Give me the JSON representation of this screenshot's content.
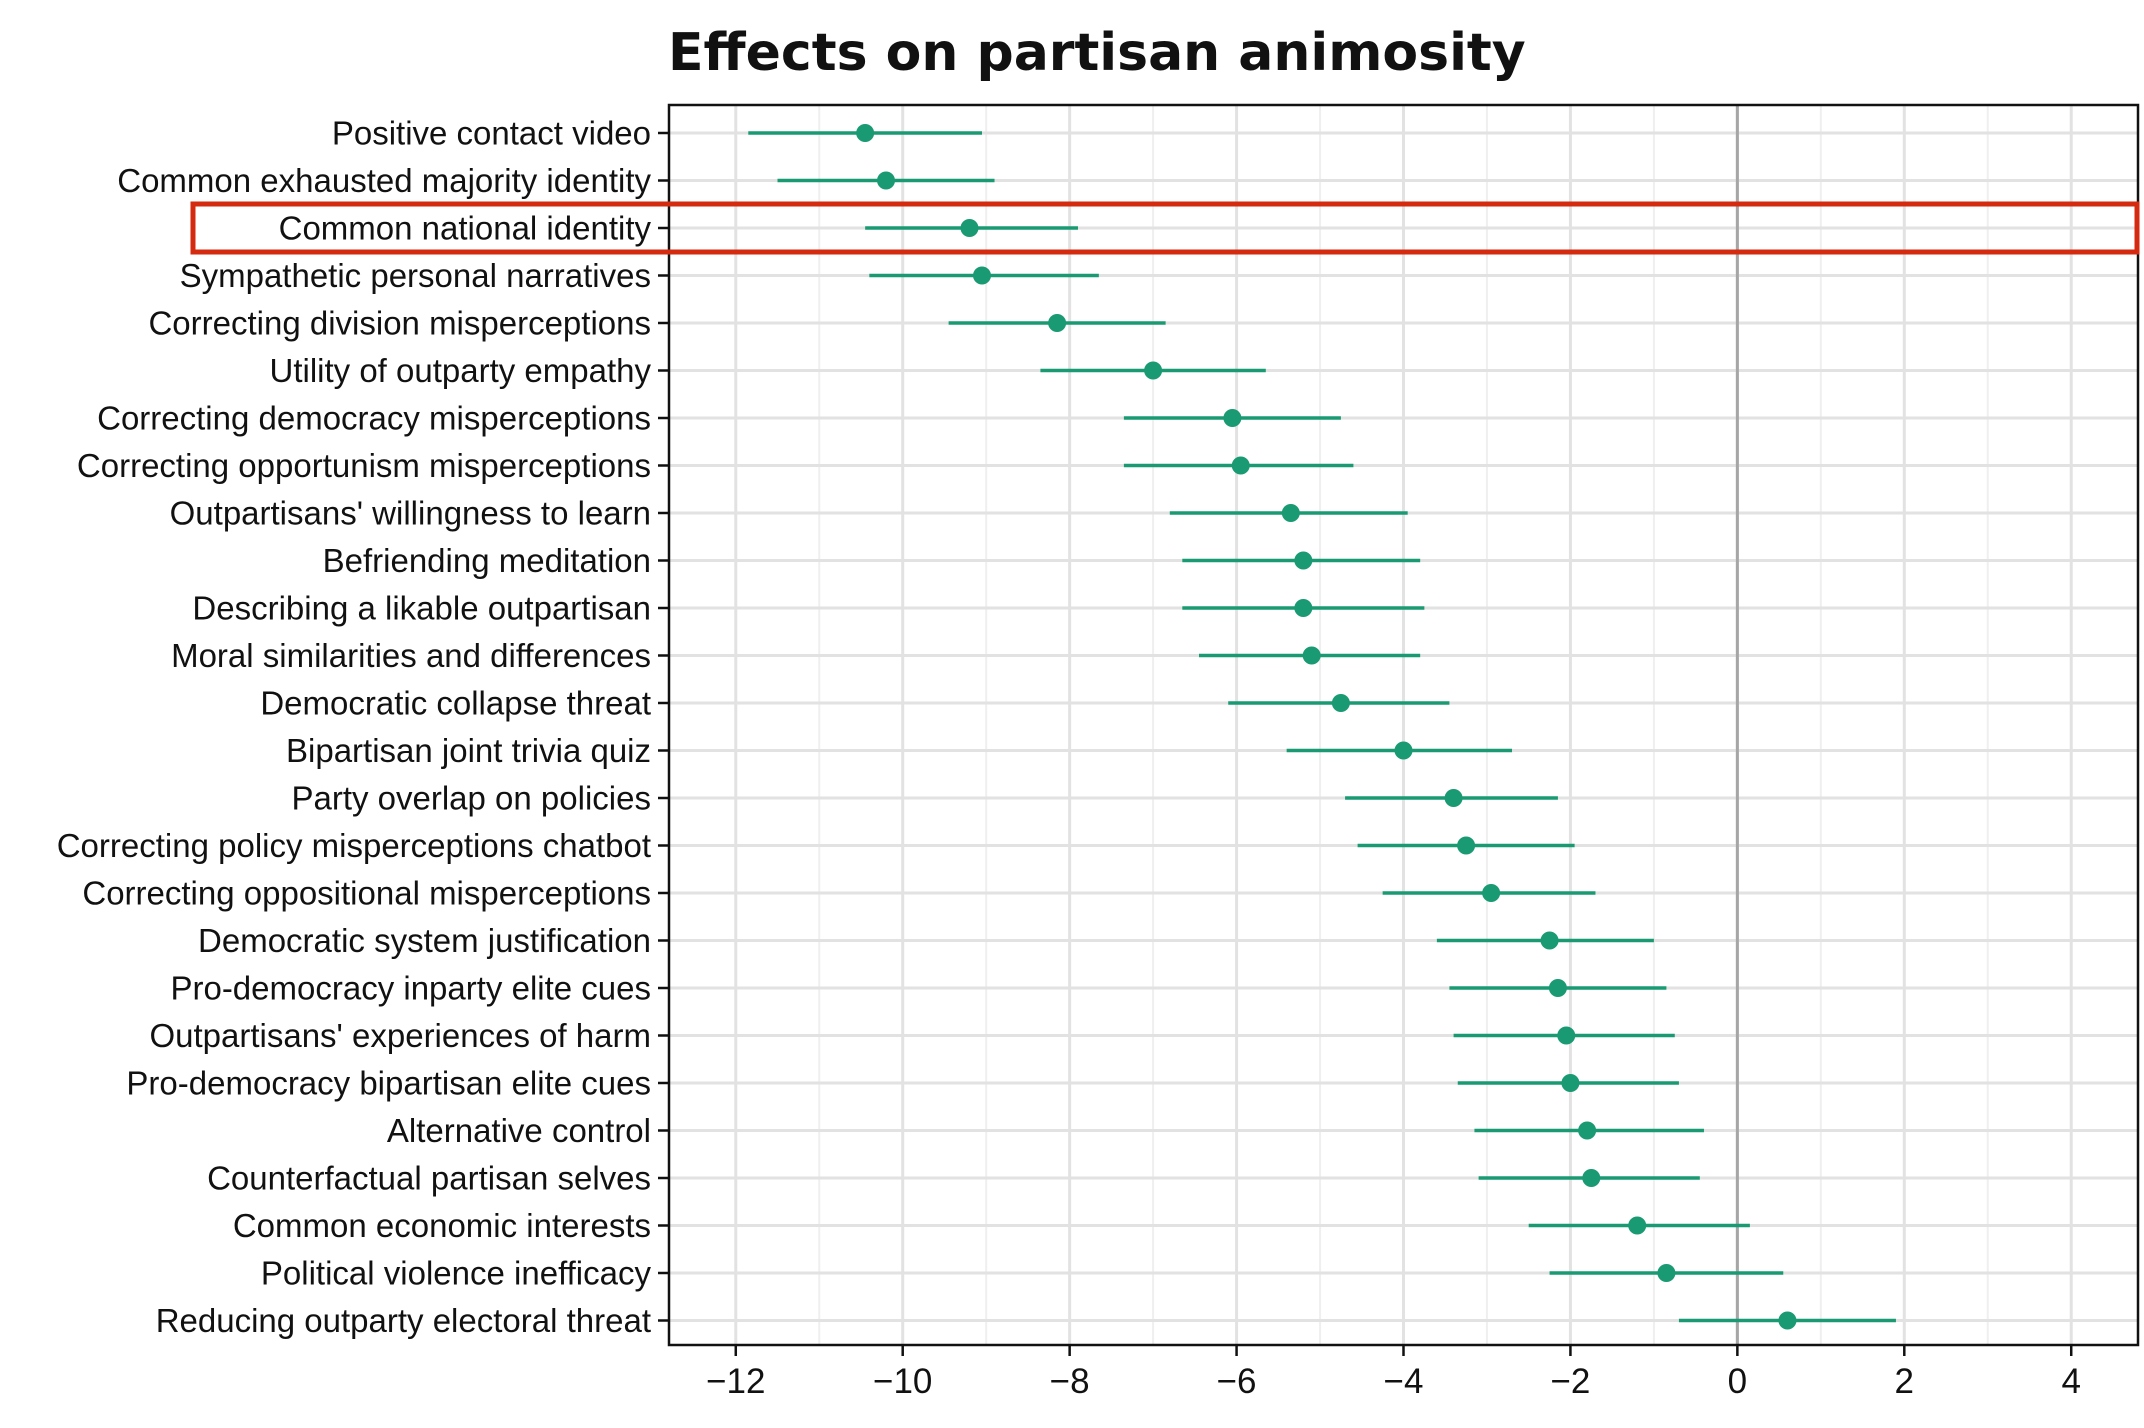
{
  "chart_data": {
    "type": "scatter",
    "subtype": "dot-and-whisker",
    "title": "Effects on partisan animosity",
    "xlabel": "",
    "ylabel": "",
    "xlim": [
      -12.8,
      4.8
    ],
    "x_ticks": [
      -12,
      -10,
      -8,
      -6,
      -4,
      -2,
      0,
      2,
      4
    ],
    "x_tick_labels": [
      "−12",
      "−10",
      "−8",
      "−6",
      "−4",
      "−2",
      "0",
      "2",
      "4"
    ],
    "grid": true,
    "reference_line_x": 0,
    "highlighted_category": "Common national identity",
    "colors": {
      "point": "#1a9a72",
      "highlight_box": "#d42a10",
      "zero_line": "#a6a6a6",
      "grid_major": "#e2e2e2",
      "grid_minor": "#efefef",
      "axis": "#111111"
    },
    "categories": [
      "Positive contact video",
      "Common exhausted majority identity",
      "Common national identity",
      "Sympathetic personal narratives",
      "Correcting division misperceptions",
      "Utility of outparty empathy",
      "Correcting democracy misperceptions",
      "Correcting opportunism misperceptions",
      "Outpartisans' willingness to learn",
      "Befriending meditation",
      "Describing a likable outpartisan",
      "Moral similarities and differences",
      "Democratic collapse threat",
      "Bipartisan joint trivia quiz",
      "Party overlap on policies",
      "Correcting policy misperceptions chatbot",
      "Correcting oppositional misperceptions",
      "Democratic system justification",
      "Pro-democracy inparty elite cues",
      "Outpartisans' experiences of harm",
      "Pro-democracy bipartisan elite cues",
      "Alternative control",
      "Counterfactual partisan selves",
      "Common economic interests",
      "Political violence inefficacy",
      "Reducing outparty electoral threat"
    ],
    "estimates": [
      -10.45,
      -10.2,
      -9.2,
      -9.05,
      -8.15,
      -7.0,
      -6.05,
      -5.95,
      -5.35,
      -5.2,
      -5.2,
      -5.1,
      -4.75,
      -4.0,
      -3.4,
      -3.25,
      -2.95,
      -2.25,
      -2.15,
      -2.05,
      -2.0,
      -1.8,
      -1.75,
      -1.2,
      -0.85,
      0.6
    ],
    "ci_low": [
      -11.85,
      -11.5,
      -10.45,
      -10.4,
      -9.45,
      -8.35,
      -7.35,
      -7.35,
      -6.8,
      -6.65,
      -6.65,
      -6.45,
      -6.1,
      -5.4,
      -4.7,
      -4.55,
      -4.25,
      -3.6,
      -3.45,
      -3.4,
      -3.35,
      -3.15,
      -3.1,
      -2.5,
      -2.25,
      -0.7
    ],
    "ci_high": [
      -9.05,
      -8.9,
      -7.9,
      -7.65,
      -6.85,
      -5.65,
      -4.75,
      -4.6,
      -3.95,
      -3.8,
      -3.75,
      -3.8,
      -3.45,
      -2.7,
      -2.15,
      -1.95,
      -1.7,
      -1.0,
      -0.85,
      -0.75,
      -0.7,
      -0.4,
      -0.45,
      0.15,
      0.55,
      1.9
    ]
  }
}
